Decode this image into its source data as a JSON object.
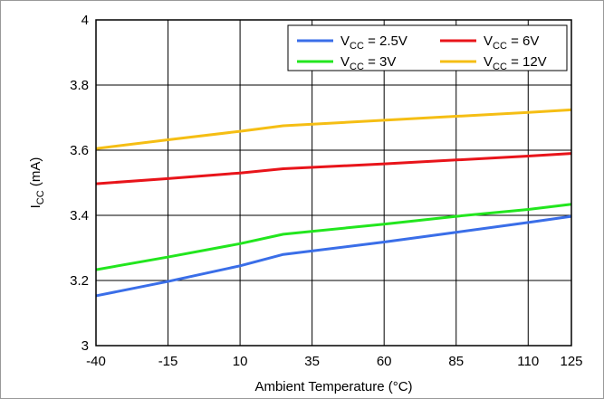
{
  "chart_data": {
    "type": "line",
    "xlabel": "Ambient Temperature (°C)",
    "ylabel": {
      "main": "I",
      "sub": "CC",
      "suffix": " (mA)"
    },
    "xlim": [
      -40,
      125
    ],
    "ylim": [
      3,
      4
    ],
    "x_ticks": [
      -40,
      -15,
      10,
      35,
      60,
      85,
      110,
      125
    ],
    "x_tick_labels": [
      "-40",
      "-15",
      "10",
      "35",
      "60",
      "85",
      "110",
      "125"
    ],
    "y_ticks": [
      3,
      3.2,
      3.4,
      3.6,
      3.8,
      4
    ],
    "y_tick_labels": [
      "3",
      "3.2",
      "3.4",
      "3.6",
      "3.8",
      "4"
    ],
    "grid": true,
    "legend_position": "top-right",
    "series": [
      {
        "name": "2.5V",
        "label": {
          "main": "V",
          "sub": "CC",
          "suffix": " = 2.5V"
        },
        "color": "#3a6ee8",
        "x": [
          -40,
          -15,
          10,
          25,
          60,
          85,
          110,
          125
        ],
        "y": [
          3.153,
          3.197,
          3.245,
          3.28,
          3.318,
          3.348,
          3.378,
          3.397
        ]
      },
      {
        "name": "3V",
        "label": {
          "main": "V",
          "sub": "CC",
          "suffix": " = 3V"
        },
        "color": "#22e61e",
        "x": [
          -40,
          -15,
          10,
          25,
          60,
          85,
          110,
          125
        ],
        "y": [
          3.233,
          3.272,
          3.313,
          3.342,
          3.373,
          3.397,
          3.418,
          3.434
        ]
      },
      {
        "name": "6V",
        "label": {
          "main": "V",
          "sub": "CC",
          "suffix": " = 6V"
        },
        "color": "#e8141a",
        "x": [
          -40,
          -15,
          10,
          25,
          60,
          85,
          110,
          125
        ],
        "y": [
          3.497,
          3.513,
          3.53,
          3.543,
          3.558,
          3.57,
          3.582,
          3.59
        ]
      },
      {
        "name": "12V",
        "label": {
          "main": "V",
          "sub": "CC",
          "suffix": " = 12V"
        },
        "color": "#f5be14",
        "x": [
          -40,
          -15,
          10,
          25,
          60,
          85,
          110,
          125
        ],
        "y": [
          3.605,
          3.632,
          3.658,
          3.675,
          3.692,
          3.704,
          3.716,
          3.724
        ]
      }
    ]
  }
}
